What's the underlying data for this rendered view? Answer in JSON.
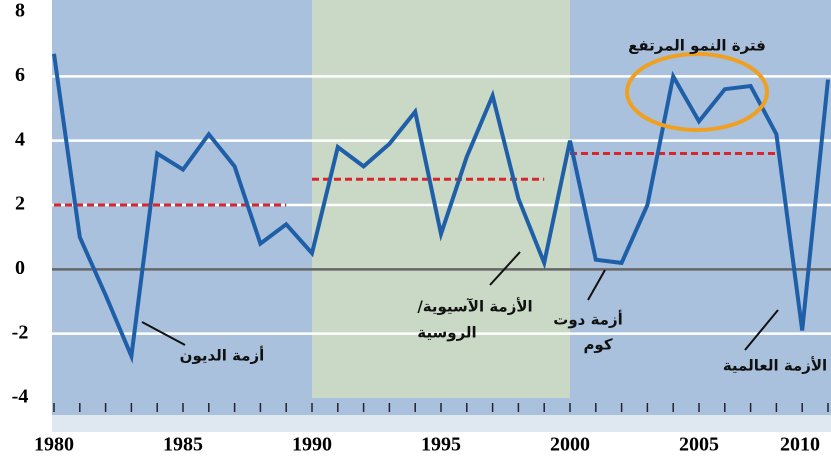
{
  "chart_data": {
    "type": "line",
    "x": [
      1980,
      1981,
      1982,
      1983,
      1984,
      1985,
      1986,
      1987,
      1988,
      1989,
      1990,
      1991,
      1992,
      1993,
      1994,
      1995,
      1996,
      1997,
      1998,
      1999,
      2000,
      2001,
      2002,
      2003,
      2004,
      2005,
      2006,
      2007,
      2008,
      2009,
      2010
    ],
    "series": [
      {
        "color": "#1f5fa8",
        "values": [
          6.7,
          1.0,
          -0.8,
          -2.7,
          3.6,
          3.1,
          4.2,
          3.2,
          0.8,
          1.4,
          0.5,
          3.8,
          3.2,
          3.9,
          4.9,
          1.1,
          3.5,
          5.4,
          2.2,
          0.2,
          4.0,
          0.3,
          0.2,
          2.0,
          6.0,
          4.6,
          5.6,
          5.7,
          4.2,
          -1.9,
          5.9
        ]
      }
    ],
    "averages": [
      {
        "x": [
          1980,
          1989
        ],
        "value": 2.0
      },
      {
        "x": [
          1990,
          1999
        ],
        "value": 2.8
      },
      {
        "x": [
          2000,
          2008
        ],
        "value": 3.6
      }
    ],
    "average_color": "#d9262a",
    "shaded_region": {
      "x": [
        1990,
        2000
      ],
      "color": "#c9d9c6"
    },
    "background_color": "#a9c1dc",
    "xlim": [
      1980,
      2010
    ],
    "ylim": [
      -4,
      8
    ],
    "xticks": [
      1980,
      1985,
      1990,
      1995,
      2000,
      2005,
      2010
    ],
    "yticks": [
      8,
      6,
      4,
      2,
      0,
      -2,
      -4
    ],
    "grid": true,
    "annotations": [
      "فترة النمو المرتفع",
      "أزمة الديون",
      "الأزمة الآسيوية/",
      "الروسية",
      "أزمة دوت",
      "كوم",
      "الأزمة العالمية"
    ]
  }
}
